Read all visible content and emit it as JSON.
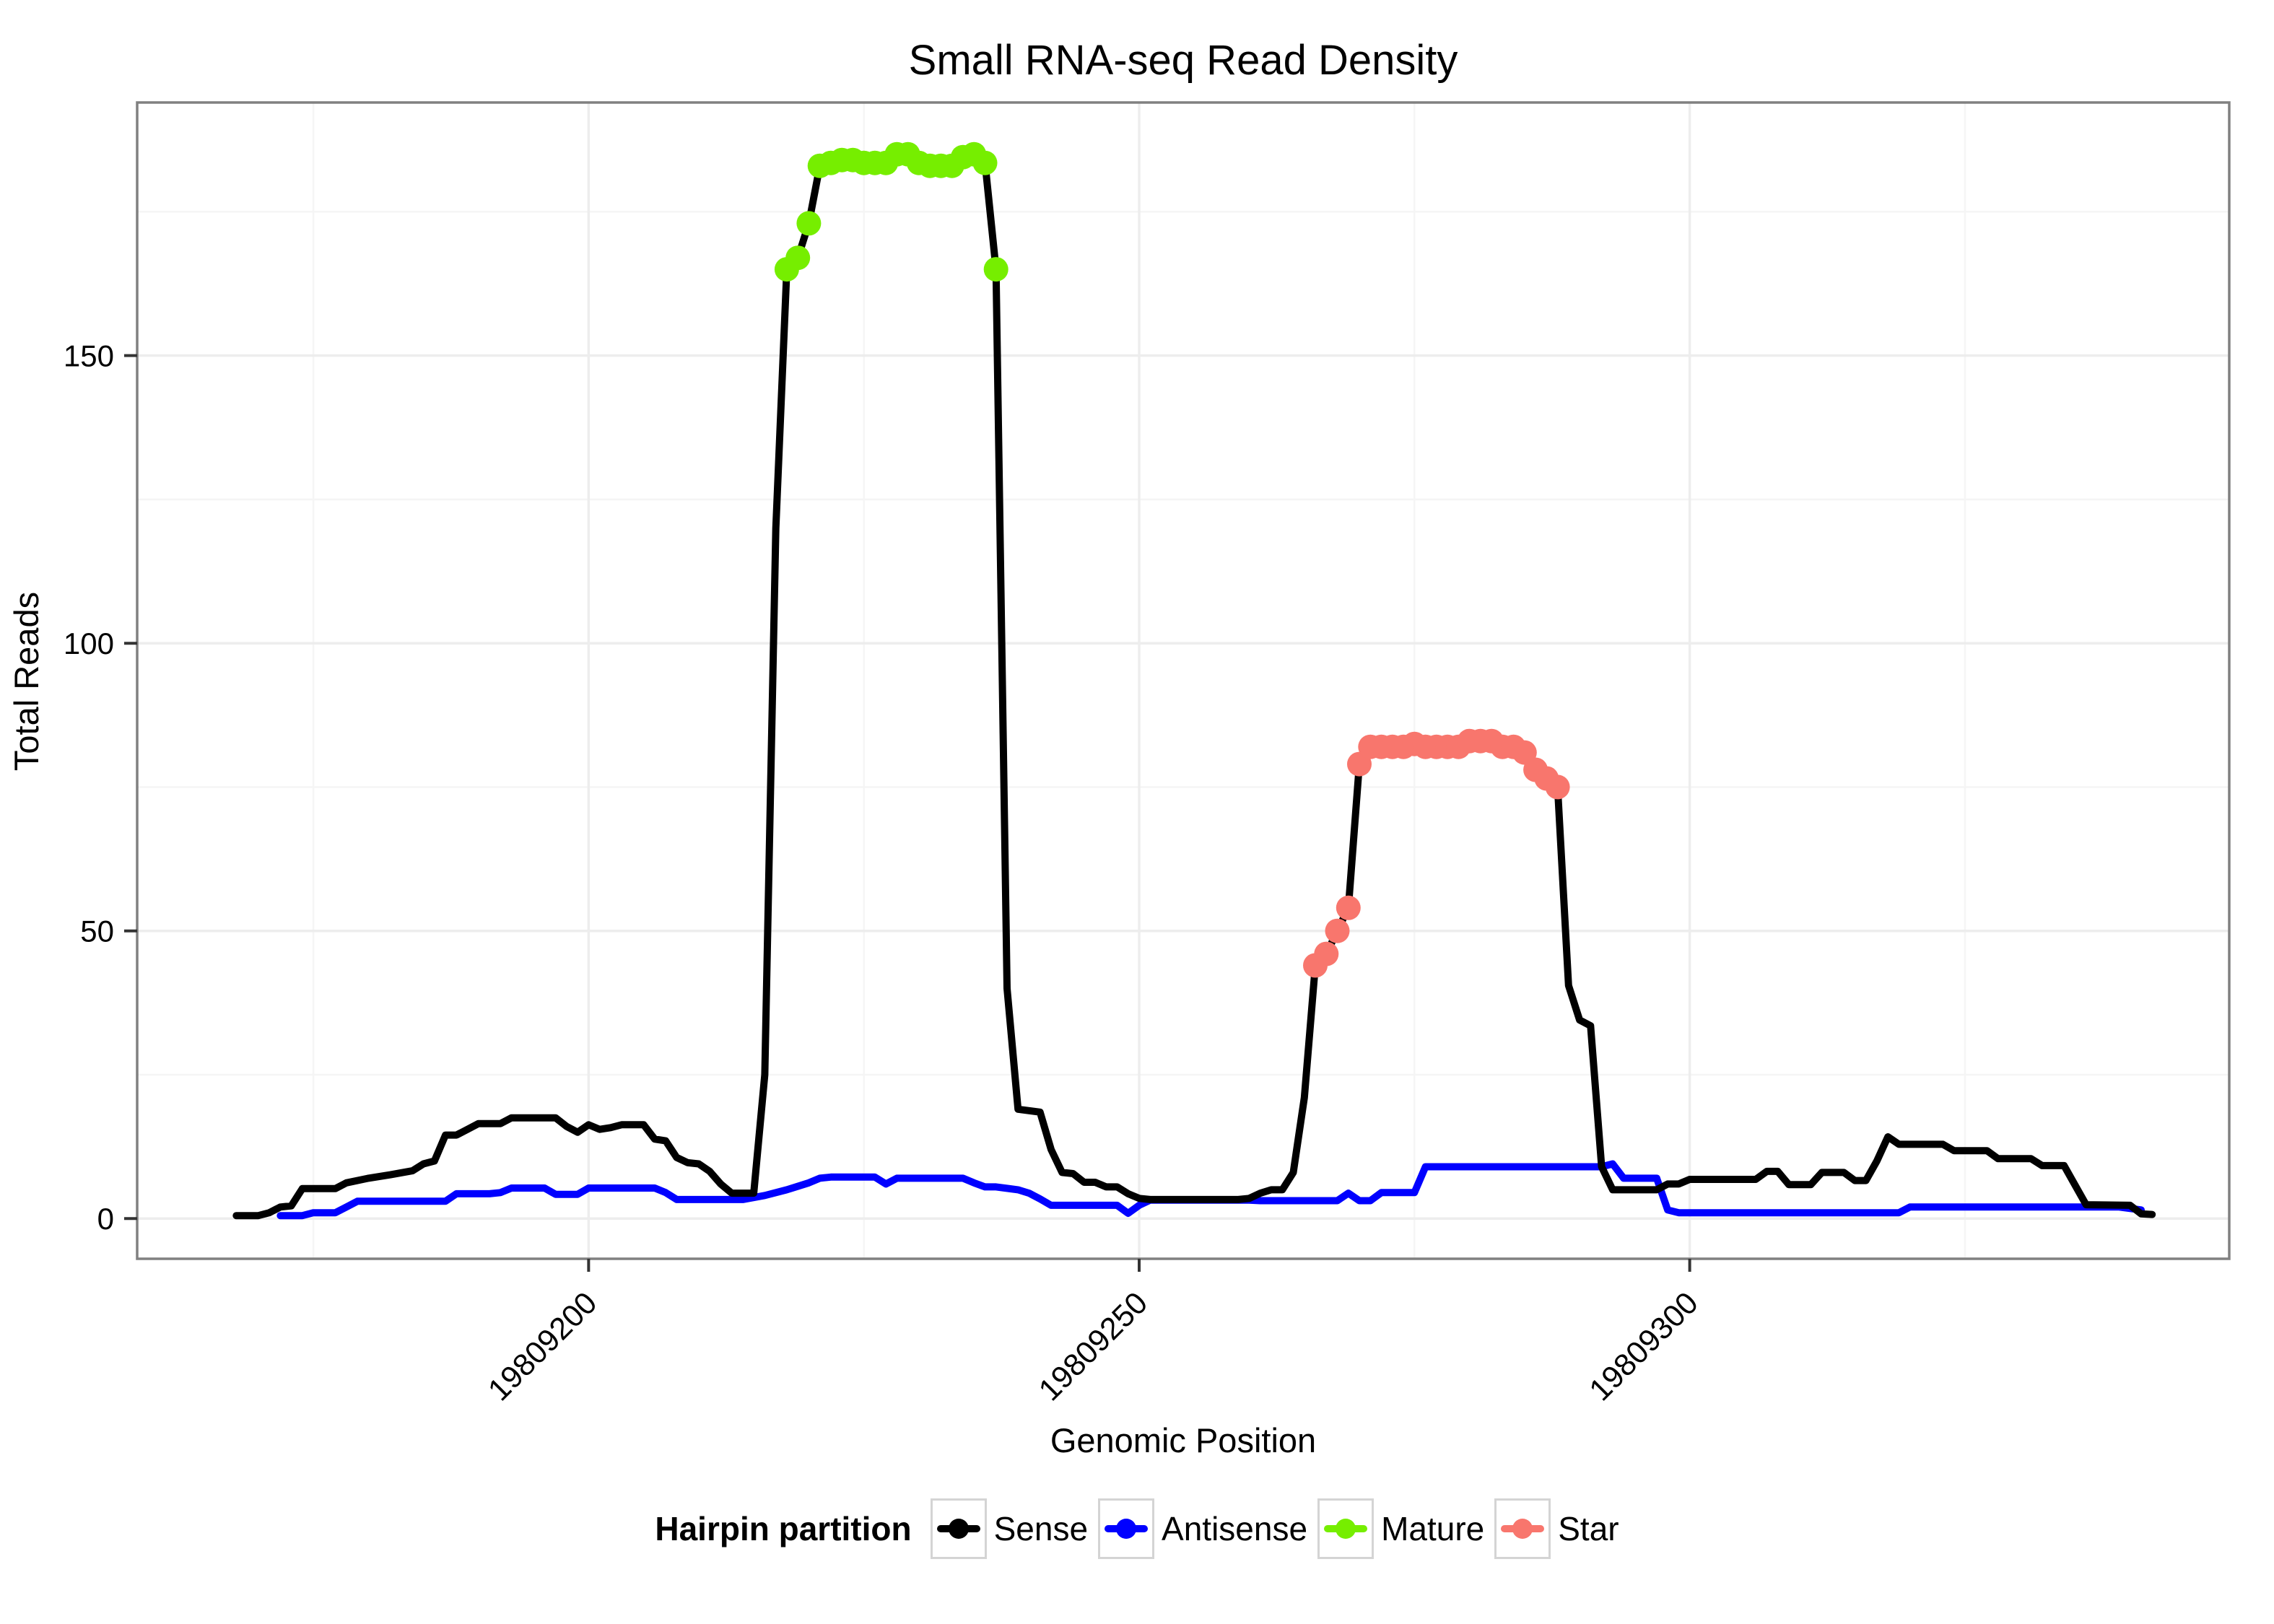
{
  "chart_data": {
    "type": "line",
    "title": "Small RNA-seq Read Density",
    "xlabel": "Genomic Position",
    "ylabel": "Total Reads",
    "grid": "on",
    "legend_position": "bottom",
    "x_axis": {
      "range": [
        19809159,
        19809349
      ],
      "ticks": [
        19809200,
        19809250,
        19809300
      ],
      "minor": [
        19809175,
        19809225,
        19809275,
        19809325
      ]
    },
    "y_axis": {
      "range": [
        -7,
        194
      ],
      "ticks": [
        0,
        50,
        100,
        150
      ],
      "minor": [
        25,
        75,
        125,
        175
      ]
    },
    "series": [
      {
        "name": "Antisense",
        "color": "#0000ff",
        "points": [
          [
            19809172,
            0.5
          ],
          [
            19809174,
            0.5
          ],
          [
            19809175,
            1
          ],
          [
            19809177,
            1
          ],
          [
            19809178,
            2
          ],
          [
            19809179,
            3
          ],
          [
            19809187,
            3
          ],
          [
            19809188,
            4.3
          ],
          [
            19809191,
            4.3
          ],
          [
            19809192,
            4.5
          ],
          [
            19809193,
            5.3
          ],
          [
            19809196,
            5.3
          ],
          [
            19809197,
            4.2
          ],
          [
            19809199,
            4.2
          ],
          [
            19809200,
            5.3
          ],
          [
            19809206,
            5.3
          ],
          [
            19809207,
            4.5
          ],
          [
            19809208,
            3.3
          ],
          [
            19809214,
            3.3
          ],
          [
            19809216,
            4
          ],
          [
            19809218,
            5
          ],
          [
            19809220,
            6.2
          ],
          [
            19809221,
            7
          ],
          [
            19809222,
            7.2
          ],
          [
            19809226,
            7.2
          ],
          [
            19809227,
            6
          ],
          [
            19809228,
            7
          ],
          [
            19809234,
            7
          ],
          [
            19809235,
            6.2
          ],
          [
            19809236,
            5.5
          ],
          [
            19809237,
            5.5
          ],
          [
            19809239,
            5
          ],
          [
            19809240,
            4.4
          ],
          [
            19809241,
            3.4
          ],
          [
            19809242,
            2.3
          ],
          [
            19809248,
            2.3
          ],
          [
            19809249,
            0.9
          ],
          [
            19809250,
            2.3
          ],
          [
            19809251,
            3.2
          ],
          [
            19809260,
            3.2
          ],
          [
            19809261,
            3.1
          ],
          [
            19809268,
            3.1
          ],
          [
            19809269,
            4.4
          ],
          [
            19809270,
            3.1
          ],
          [
            19809271,
            3.1
          ],
          [
            19809272,
            4.5
          ],
          [
            19809275,
            4.5
          ],
          [
            19809276,
            9
          ],
          [
            19809292,
            9
          ],
          [
            19809293,
            9.5
          ],
          [
            19809294,
            7
          ],
          [
            19809297,
            7
          ],
          [
            19809298,
            1.5
          ],
          [
            19809299,
            1
          ],
          [
            19809319,
            1
          ],
          [
            19809320,
            2
          ],
          [
            19809339,
            2
          ],
          [
            19809341,
            1.5
          ]
        ]
      },
      {
        "name": "Sense",
        "color": "#000000",
        "points": [
          [
            19809168,
            0.5
          ],
          [
            19809170,
            0.5
          ],
          [
            19809171,
            1
          ],
          [
            19809172,
            2
          ],
          [
            19809173,
            2.2
          ],
          [
            19809174,
            5.2
          ],
          [
            19809177,
            5.2
          ],
          [
            19809178,
            6.2
          ],
          [
            19809180,
            7
          ],
          [
            19809182,
            7.6
          ],
          [
            19809184,
            8.3
          ],
          [
            19809185,
            9.5
          ],
          [
            19809186,
            10
          ],
          [
            19809187,
            14.5
          ],
          [
            19809188,
            14.5
          ],
          [
            19809189,
            15.5
          ],
          [
            19809190,
            16.5
          ],
          [
            19809192,
            16.5
          ],
          [
            19809193,
            17.5
          ],
          [
            19809197,
            17.5
          ],
          [
            19809198,
            16
          ],
          [
            19809199,
            15
          ],
          [
            19809200,
            16.3
          ],
          [
            19809201,
            15.5
          ],
          [
            19809202,
            15.8
          ],
          [
            19809203,
            16.3
          ],
          [
            19809205,
            16.3
          ],
          [
            19809206,
            13.8
          ],
          [
            19809207,
            13.5
          ],
          [
            19809208,
            10.6
          ],
          [
            19809209,
            9.7
          ],
          [
            19809210,
            9.5
          ],
          [
            19809211,
            8.2
          ],
          [
            19809212,
            6
          ],
          [
            19809213,
            4.4
          ],
          [
            19809215,
            4.4
          ],
          [
            19809216,
            25
          ],
          [
            19809217,
            120
          ],
          [
            19809218,
            165
          ],
          [
            19809219,
            167
          ],
          [
            19809220,
            173
          ],
          [
            19809221,
            183
          ],
          [
            19809223,
            184
          ],
          [
            19809224,
            184
          ],
          [
            19809225,
            183.5
          ],
          [
            19809227,
            183.5
          ],
          [
            19809228,
            185
          ],
          [
            19809229,
            185
          ],
          [
            19809230,
            183.5
          ],
          [
            19809231,
            183
          ],
          [
            19809233,
            183
          ],
          [
            19809234,
            184.5
          ],
          [
            19809235,
            185
          ],
          [
            19809236,
            183.5
          ],
          [
            19809237,
            165
          ],
          [
            19809238,
            40
          ],
          [
            19809239,
            19
          ],
          [
            19809241,
            18.5
          ],
          [
            19809242,
            12
          ],
          [
            19809243,
            8
          ],
          [
            19809244,
            7.8
          ],
          [
            19809245,
            6.3
          ],
          [
            19809246,
            6.3
          ],
          [
            19809247,
            5.5
          ],
          [
            19809248,
            5.5
          ],
          [
            19809249,
            4.3
          ],
          [
            19809250,
            3.5
          ],
          [
            19809251,
            3.3
          ],
          [
            19809259,
            3.3
          ],
          [
            19809260,
            3.5
          ],
          [
            19809261,
            4.4
          ],
          [
            19809262,
            5
          ],
          [
            19809263,
            5
          ],
          [
            19809264,
            8
          ],
          [
            19809265,
            21
          ],
          [
            19809266,
            44
          ],
          [
            19809267,
            46
          ],
          [
            19809268,
            50
          ],
          [
            19809269,
            54
          ],
          [
            19809270,
            79
          ],
          [
            19809271,
            82
          ],
          [
            19809274,
            82
          ],
          [
            19809275,
            82.5
          ],
          [
            19809276,
            82
          ],
          [
            19809279,
            82
          ],
          [
            19809280,
            83
          ],
          [
            19809282,
            83
          ],
          [
            19809283,
            82
          ],
          [
            19809284,
            82
          ],
          [
            19809285,
            81
          ],
          [
            19809286,
            78
          ],
          [
            19809287,
            76.5
          ],
          [
            19809288,
            75
          ],
          [
            19809289,
            40.5
          ],
          [
            19809290,
            34.5
          ],
          [
            19809291,
            33.5
          ],
          [
            19809292,
            9
          ],
          [
            19809293,
            5
          ],
          [
            19809297,
            5
          ],
          [
            19809298,
            6
          ],
          [
            19809299,
            6
          ],
          [
            19809300,
            6.8
          ],
          [
            19809306,
            6.8
          ],
          [
            19809307,
            8.2
          ],
          [
            19809308,
            8.2
          ],
          [
            19809309,
            5.9
          ],
          [
            19809311,
            5.9
          ],
          [
            19809312,
            8
          ],
          [
            19809314,
            8
          ],
          [
            19809315,
            6.6
          ],
          [
            19809316,
            6.6
          ],
          [
            19809317,
            10
          ],
          [
            19809318,
            14.2
          ],
          [
            19809319,
            12.9
          ],
          [
            19809323,
            12.9
          ],
          [
            19809324,
            11.8
          ],
          [
            19809327,
            11.8
          ],
          [
            19809328,
            10.4
          ],
          [
            19809331,
            10.4
          ],
          [
            19809332,
            9.2
          ],
          [
            19809334,
            9.2
          ],
          [
            19809336,
            2.4
          ],
          [
            19809340,
            2.3
          ],
          [
            19809341,
            0.8
          ],
          [
            19809342,
            0.7
          ]
        ]
      }
    ],
    "point_overlays": [
      {
        "name": "Mature",
        "color": "#76ee00",
        "points": [
          [
            19809218,
            165
          ],
          [
            19809219,
            167
          ],
          [
            19809220,
            173
          ],
          [
            19809221,
            183
          ],
          [
            19809222,
            183.5
          ],
          [
            19809223,
            184
          ],
          [
            19809224,
            184
          ],
          [
            19809225,
            183.5
          ],
          [
            19809226,
            183.5
          ],
          [
            19809227,
            183.5
          ],
          [
            19809228,
            185
          ],
          [
            19809229,
            185
          ],
          [
            19809230,
            183.5
          ],
          [
            19809231,
            183
          ],
          [
            19809232,
            183
          ],
          [
            19809233,
            183
          ],
          [
            19809234,
            184.5
          ],
          [
            19809235,
            185
          ],
          [
            19809236,
            183.5
          ],
          [
            19809237,
            165
          ]
        ]
      },
      {
        "name": "Star",
        "color": "#f8766d",
        "points": [
          [
            19809266,
            44
          ],
          [
            19809267,
            46
          ],
          [
            19809268,
            50
          ],
          [
            19809269,
            54
          ],
          [
            19809270,
            79
          ],
          [
            19809271,
            82
          ],
          [
            19809272,
            82
          ],
          [
            19809273,
            82
          ],
          [
            19809274,
            82
          ],
          [
            19809275,
            82.5
          ],
          [
            19809276,
            82
          ],
          [
            19809277,
            82
          ],
          [
            19809278,
            82
          ],
          [
            19809279,
            82
          ],
          [
            19809280,
            83
          ],
          [
            19809281,
            83
          ],
          [
            19809282,
            83
          ],
          [
            19809283,
            82
          ],
          [
            19809284,
            82
          ],
          [
            19809285,
            81
          ],
          [
            19809286,
            78
          ],
          [
            19809287,
            76.5
          ],
          [
            19809288,
            75
          ]
        ]
      }
    ]
  },
  "legend": {
    "title": "Hairpin partition",
    "items": [
      {
        "label": "Sense",
        "color": "#000000"
      },
      {
        "label": "Antisense",
        "color": "#0000ff"
      },
      {
        "label": "Mature",
        "color": "#76ee00"
      },
      {
        "label": "Star",
        "color": "#f8766d"
      }
    ]
  },
  "style": {
    "panel_border_color": "#808080",
    "major_grid_color": "#ededed",
    "minor_grid_color": "#f5f5f5",
    "tick_color": "#333333"
  }
}
